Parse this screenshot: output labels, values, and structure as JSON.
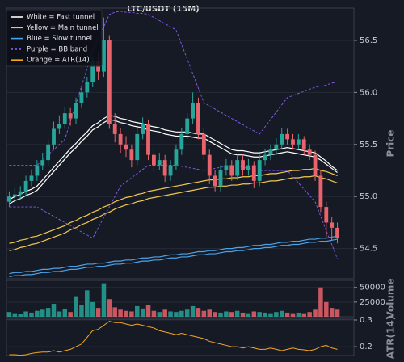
{
  "chart_data": [
    {
      "type": "candlestick",
      "title": "LTC/USDT (15M)",
      "ylabel": "Price",
      "ylim": [
        54.21,
        56.81
      ],
      "yticks": [
        54.5,
        {
          "value": 55,
          "label": "55.0"
        },
        55.5,
        {
          "value": 56,
          "label": "56.0"
        },
        56.5
      ],
      "grid": true,
      "legend": "upper left",
      "up_color": "#26a69a",
      "down_color": "#e8636b",
      "open": [
        54.95,
        55.0,
        55.02,
        55.05,
        55.15,
        55.2,
        55.3,
        55.35,
        55.5,
        55.65,
        55.7,
        55.8,
        55.75,
        55.9,
        56.0,
        56.1,
        56.3,
        56.2,
        56.5,
        55.7,
        55.6,
        55.5,
        55.45,
        55.35,
        55.6,
        55.7,
        55.4,
        55.3,
        55.35,
        55.2,
        55.3,
        55.45,
        55.6,
        55.75,
        55.9,
        55.6,
        55.4,
        55.2,
        55.1,
        55.25,
        55.3,
        55.2,
        55.35,
        55.25,
        55.3,
        55.15,
        55.35,
        55.4,
        55.45,
        55.5,
        55.6,
        55.55,
        55.5,
        55.55,
        55.45,
        55.4,
        55.2,
        54.9,
        54.75,
        54.7
      ],
      "high": [
        55.05,
        55.08,
        55.1,
        55.2,
        55.26,
        55.35,
        55.42,
        55.55,
        55.72,
        55.78,
        55.86,
        55.85,
        55.95,
        56.06,
        56.15,
        56.35,
        56.38,
        56.72,
        56.55,
        55.8,
        55.66,
        55.58,
        55.5,
        55.66,
        55.76,
        55.74,
        55.46,
        55.42,
        55.4,
        55.35,
        55.5,
        55.66,
        55.8,
        56.0,
        55.95,
        55.66,
        55.45,
        55.25,
        55.3,
        55.36,
        55.35,
        55.4,
        55.4,
        55.36,
        55.34,
        55.4,
        55.46,
        55.5,
        55.56,
        55.66,
        55.65,
        55.6,
        55.6,
        55.58,
        55.5,
        55.44,
        55.25,
        54.95,
        54.8,
        54.75
      ],
      "low": [
        54.9,
        54.95,
        54.97,
        55.0,
        55.1,
        55.15,
        55.25,
        55.3,
        55.45,
        55.6,
        55.65,
        55.68,
        55.7,
        55.85,
        55.95,
        56.05,
        56.12,
        56.15,
        55.65,
        55.52,
        55.42,
        55.38,
        55.28,
        55.3,
        55.55,
        55.35,
        55.24,
        55.25,
        55.14,
        55.15,
        55.25,
        55.4,
        55.55,
        55.7,
        55.55,
        55.35,
        55.12,
        55.05,
        55.05,
        55.2,
        55.15,
        55.16,
        55.2,
        55.2,
        55.08,
        55.1,
        55.3,
        55.35,
        55.4,
        55.45,
        55.5,
        55.45,
        55.45,
        55.4,
        55.35,
        55.15,
        54.85,
        54.6,
        54.58,
        54.55
      ],
      "close": [
        55.0,
        55.02,
        55.05,
        55.15,
        55.2,
        55.3,
        55.35,
        55.5,
        55.65,
        55.7,
        55.8,
        55.75,
        55.9,
        56.0,
        56.1,
        56.3,
        56.2,
        56.5,
        55.7,
        55.6,
        55.5,
        55.45,
        55.35,
        55.6,
        55.7,
        55.4,
        55.3,
        55.35,
        55.2,
        55.3,
        55.45,
        55.6,
        55.75,
        55.9,
        55.6,
        55.4,
        55.2,
        55.1,
        55.25,
        55.3,
        55.2,
        55.35,
        55.25,
        55.3,
        55.15,
        55.35,
        55.4,
        55.45,
        55.5,
        55.6,
        55.55,
        55.5,
        55.55,
        55.45,
        55.4,
        55.2,
        54.9,
        54.75,
        54.7,
        54.6
      ],
      "tunnels": [
        {
          "name": "White = Fast tunnel",
          "color": "#ffffff",
          "upper": [
            54.97,
            55.0,
            55.02,
            55.05,
            55.07,
            55.1,
            55.16,
            55.22,
            55.28,
            55.34,
            55.4,
            55.46,
            55.51,
            55.57,
            55.62,
            55.68,
            55.71,
            55.75,
            55.78,
            55.77,
            55.75,
            55.74,
            55.72,
            55.71,
            55.7,
            55.68,
            55.67,
            55.66,
            55.64,
            55.63,
            55.62,
            55.62,
            55.62,
            55.61,
            55.6,
            55.6,
            55.57,
            55.54,
            55.51,
            55.48,
            55.45,
            55.44,
            55.44,
            55.43,
            55.42,
            55.42,
            55.43,
            55.44,
            55.45,
            55.46,
            55.47,
            55.46,
            55.45,
            55.44,
            55.43,
            55.42,
            55.38,
            55.34,
            55.29,
            55.25
          ],
          "lower": [
            54.93,
            54.96,
            54.98,
            55.01,
            55.03,
            55.06,
            55.12,
            55.18,
            55.24,
            55.3,
            55.36,
            55.42,
            55.47,
            55.53,
            55.58,
            55.64,
            55.67,
            55.71,
            55.74,
            55.73,
            55.71,
            55.7,
            55.68,
            55.67,
            55.66,
            55.64,
            55.63,
            55.62,
            55.6,
            55.59,
            55.58,
            55.58,
            55.58,
            55.57,
            55.56,
            55.56,
            55.53,
            55.5,
            55.47,
            55.44,
            55.41,
            55.4,
            55.4,
            55.39,
            55.38,
            55.38,
            55.39,
            55.4,
            55.41,
            55.42,
            55.43,
            55.42,
            55.41,
            55.4,
            55.39,
            55.38,
            55.35,
            55.31,
            55.27,
            55.23
          ]
        },
        {
          "name": "Yellow = Main tunnel",
          "color": "#f2c94c",
          "upper": [
            54.55,
            54.56,
            54.58,
            54.59,
            54.61,
            54.62,
            54.64,
            54.66,
            54.68,
            54.7,
            54.72,
            54.75,
            54.77,
            54.8,
            54.82,
            54.85,
            54.87,
            54.9,
            54.92,
            54.95,
            54.97,
            54.99,
            55.0,
            55.02,
            55.03,
            55.05,
            55.06,
            55.07,
            55.08,
            55.09,
            55.1,
            55.11,
            55.12,
            55.13,
            55.14,
            55.15,
            55.16,
            55.16,
            55.17,
            55.17,
            55.18,
            55.18,
            55.19,
            55.19,
            55.2,
            55.2,
            55.21,
            55.22,
            55.22,
            55.23,
            55.24,
            55.25,
            55.25,
            55.26,
            55.26,
            55.27,
            55.25,
            55.24,
            55.22,
            55.2
          ],
          "lower": [
            54.48,
            54.49,
            54.51,
            54.52,
            54.54,
            54.55,
            54.57,
            54.59,
            54.61,
            54.63,
            54.65,
            54.68,
            54.7,
            54.73,
            54.75,
            54.78,
            54.8,
            54.83,
            54.85,
            54.88,
            54.9,
            54.92,
            54.93,
            54.95,
            54.96,
            54.98,
            54.99,
            55.0,
            55.01,
            55.02,
            55.03,
            55.04,
            55.05,
            55.06,
            55.07,
            55.08,
            55.09,
            55.09,
            55.1,
            55.1,
            55.11,
            55.11,
            55.12,
            55.12,
            55.13,
            55.13,
            55.14,
            55.15,
            55.15,
            55.16,
            55.17,
            55.18,
            55.18,
            55.19,
            55.19,
            55.2,
            55.18,
            55.17,
            55.15,
            55.13
          ]
        },
        {
          "name": "Blue = Slow tunnel",
          "color": "#4aa3e8",
          "upper": [
            54.26,
            54.27,
            54.27,
            54.28,
            54.28,
            54.29,
            54.3,
            54.3,
            54.31,
            54.31,
            54.32,
            54.33,
            54.33,
            54.34,
            54.35,
            54.35,
            54.36,
            54.36,
            54.37,
            54.38,
            54.38,
            54.39,
            54.39,
            54.4,
            54.41,
            54.41,
            54.42,
            54.42,
            54.43,
            54.44,
            54.44,
            54.45,
            54.45,
            54.46,
            54.47,
            54.47,
            54.48,
            54.48,
            54.49,
            54.5,
            54.5,
            54.51,
            54.51,
            54.52,
            54.53,
            54.53,
            54.54,
            54.54,
            54.55,
            54.56,
            54.56,
            54.57,
            54.57,
            54.58,
            54.59,
            54.59,
            54.6,
            54.6,
            54.61,
            54.62
          ],
          "lower": [
            54.23,
            54.24,
            54.24,
            54.25,
            54.25,
            54.26,
            54.27,
            54.27,
            54.28,
            54.28,
            54.29,
            54.3,
            54.3,
            54.31,
            54.32,
            54.32,
            54.33,
            54.33,
            54.34,
            54.35,
            54.35,
            54.36,
            54.36,
            54.37,
            54.38,
            54.38,
            54.39,
            54.39,
            54.4,
            54.41,
            54.41,
            54.42,
            54.42,
            54.43,
            54.44,
            54.44,
            54.45,
            54.45,
            54.46,
            54.47,
            54.47,
            54.48,
            54.48,
            54.49,
            54.5,
            54.5,
            54.51,
            54.51,
            54.52,
            54.53,
            54.53,
            54.54,
            54.54,
            54.55,
            54.56,
            54.56,
            54.57,
            54.57,
            54.58,
            54.59
          ]
        }
      ],
      "band": {
        "name": "Purple = BB band",
        "color": "#8a5cf5",
        "dashed": true,
        "upper": [
          55.3,
          55.3,
          55.3,
          55.3,
          55.3,
          55.3,
          55.35,
          55.4,
          55.45,
          55.5,
          55.55,
          55.72,
          55.89,
          56.06,
          56.23,
          56.4,
          56.52,
          56.63,
          56.75,
          56.77,
          56.78,
          56.77,
          56.77,
          56.76,
          56.76,
          56.75,
          56.72,
          56.69,
          56.66,
          56.63,
          56.6,
          56.46,
          56.32,
          56.18,
          56.04,
          55.9,
          55.87,
          55.84,
          55.81,
          55.78,
          55.75,
          55.72,
          55.69,
          55.66,
          55.63,
          55.6,
          55.67,
          55.74,
          55.81,
          55.88,
          55.95,
          55.97,
          55.99,
          56.01,
          56.03,
          56.05,
          56.06,
          56.07,
          56.09,
          56.1
        ],
        "lower": [
          54.9,
          54.9,
          54.9,
          54.9,
          54.9,
          54.9,
          54.87,
          54.84,
          54.81,
          54.78,
          54.75,
          54.72,
          54.69,
          54.66,
          54.63,
          54.6,
          54.7,
          54.8,
          54.9,
          55.0,
          55.1,
          55.14,
          55.18,
          55.22,
          55.26,
          55.3,
          55.3,
          55.3,
          55.3,
          55.3,
          55.3,
          55.29,
          55.28,
          55.27,
          55.26,
          55.25,
          55.26,
          55.27,
          55.28,
          55.29,
          55.3,
          55.29,
          55.28,
          55.27,
          55.26,
          55.25,
          55.25,
          55.25,
          55.25,
          55.25,
          55.25,
          55.19,
          55.13,
          55.07,
          55.01,
          54.95,
          54.81,
          54.67,
          54.54,
          54.4
        ]
      }
    },
    {
      "type": "bar",
      "ylabel": "Volume",
      "ylim": [
        0,
        62000
      ],
      "yticks": [
        25000,
        50000
      ],
      "grid": true,
      "values": [
        8000,
        6000,
        5000,
        9000,
        7000,
        10000,
        12000,
        15000,
        22000,
        9000,
        13000,
        8000,
        35000,
        20000,
        45000,
        25000,
        15000,
        57000,
        30000,
        16000,
        12000,
        10000,
        9000,
        18000,
        14000,
        20000,
        10000,
        8000,
        12000,
        9000,
        8000,
        10000,
        12000,
        18000,
        15000,
        10000,
        12000,
        8000,
        7000,
        9000,
        8000,
        10000,
        7000,
        6000,
        9000,
        8000,
        7000,
        6000,
        8000,
        10000,
        7000,
        6000,
        7000,
        6000,
        8000,
        12000,
        50000,
        25000,
        15000,
        12000
      ]
    },
    {
      "type": "line",
      "ylabel": "ATR(14)",
      "ylim": [
        0.167,
        0.303
      ],
      "yticks": [
        0.2,
        0.3
      ],
      "grid": true,
      "series": [
        {
          "name": "Orange = ATR(14)",
          "color": "#f5a623",
          "values": [
            0.17,
            0.17,
            0.168,
            0.17,
            0.175,
            0.178,
            0.18,
            0.18,
            0.185,
            0.18,
            0.185,
            0.19,
            0.2,
            0.21,
            0.235,
            0.26,
            0.265,
            0.28,
            0.295,
            0.29,
            0.29,
            0.285,
            0.28,
            0.285,
            0.28,
            0.275,
            0.27,
            0.26,
            0.255,
            0.25,
            0.245,
            0.25,
            0.245,
            0.24,
            0.235,
            0.23,
            0.22,
            0.215,
            0.21,
            0.205,
            0.2,
            0.2,
            0.195,
            0.2,
            0.195,
            0.19,
            0.19,
            0.195,
            0.19,
            0.185,
            0.19,
            0.195,
            0.19,
            0.188,
            0.185,
            0.19,
            0.2,
            0.205,
            0.195,
            0.19
          ]
        }
      ]
    }
  ]
}
